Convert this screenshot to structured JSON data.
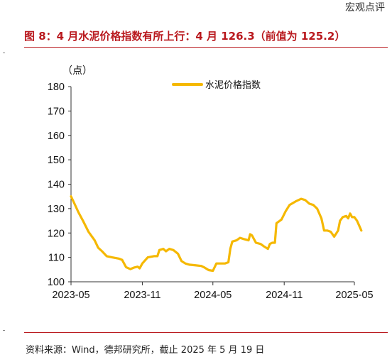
{
  "header": {
    "tag": "宏观点评",
    "title": "图 8：4 月水泥价格指数有所上行：4 月 126.3（前值为 125.2）"
  },
  "footer": {
    "source": "资料来源：Wind，德邦研究所，截止 2025 年 5 月 19 日"
  },
  "chart_data": {
    "type": "line",
    "unit": "（点）",
    "ylim": [
      100,
      180
    ],
    "yticks": [
      "100",
      "110",
      "120",
      "130",
      "140",
      "150",
      "160",
      "170",
      "180"
    ],
    "xticks": [
      "2023-05",
      "2023-11",
      "2024-05",
      "2024-11",
      "2025-05"
    ],
    "grid": false,
    "legend_position": "top-center",
    "series": [
      {
        "name": "水泥价格指数",
        "color": "#f5b800",
        "points": [
          [
            "2023-05-01",
            135.0
          ],
          [
            "2023-05-10",
            132.0
          ],
          [
            "2023-05-20",
            128.5
          ],
          [
            "2023-06-01",
            125.0
          ],
          [
            "2023-06-15",
            120.5
          ],
          [
            "2023-07-01",
            117.0
          ],
          [
            "2023-07-10",
            114.0
          ],
          [
            "2023-07-20",
            112.5
          ],
          [
            "2023-08-01",
            110.5
          ],
          [
            "2023-08-15",
            110.0
          ],
          [
            "2023-09-01",
            109.5
          ],
          [
            "2023-09-10",
            109.0
          ],
          [
            "2023-09-20",
            106.0
          ],
          [
            "2023-10-01",
            105.2
          ],
          [
            "2023-10-10",
            105.8
          ],
          [
            "2023-10-20",
            106.2
          ],
          [
            "2023-10-25",
            105.5
          ],
          [
            "2023-11-01",
            107.5
          ],
          [
            "2023-11-15",
            110.0
          ],
          [
            "2023-12-01",
            110.5
          ],
          [
            "2023-12-10",
            110.5
          ],
          [
            "2023-12-15",
            113.0
          ],
          [
            "2023-12-25",
            113.5
          ],
          [
            "2024-01-01",
            112.5
          ],
          [
            "2024-01-10",
            113.5
          ],
          [
            "2024-01-20",
            113.0
          ],
          [
            "2024-02-01",
            111.5
          ],
          [
            "2024-02-10",
            108.5
          ],
          [
            "2024-02-20",
            107.5
          ],
          [
            "2024-03-01",
            107.0
          ],
          [
            "2024-03-15",
            106.8
          ],
          [
            "2024-04-01",
            106.5
          ],
          [
            "2024-04-10",
            105.8
          ],
          [
            "2024-04-20",
            104.8
          ],
          [
            "2024-05-01",
            104.5
          ],
          [
            "2024-05-10",
            107.5
          ],
          [
            "2024-05-20",
            107.5
          ],
          [
            "2024-06-01",
            107.5
          ],
          [
            "2024-06-10",
            108.0
          ],
          [
            "2024-06-15",
            113.5
          ],
          [
            "2024-06-20",
            116.5
          ],
          [
            "2024-07-01",
            117.0
          ],
          [
            "2024-07-10",
            118.0
          ],
          [
            "2024-07-20",
            117.5
          ],
          [
            "2024-08-01",
            117.0
          ],
          [
            "2024-08-05",
            119.5
          ],
          [
            "2024-08-10",
            119.0
          ],
          [
            "2024-08-20",
            116.0
          ],
          [
            "2024-09-01",
            115.5
          ],
          [
            "2024-09-10",
            114.5
          ],
          [
            "2024-09-20",
            113.5
          ],
          [
            "2024-09-25",
            115.5
          ],
          [
            "2024-10-01",
            116.0
          ],
          [
            "2024-10-08",
            116.0
          ],
          [
            "2024-10-12",
            124.0
          ],
          [
            "2024-10-25",
            125.5
          ],
          [
            "2024-11-05",
            129.0
          ],
          [
            "2024-11-15",
            131.5
          ],
          [
            "2024-12-01",
            133.0
          ],
          [
            "2024-12-15",
            134.0
          ],
          [
            "2024-12-25",
            133.5
          ],
          [
            "2025-01-05",
            132.0
          ],
          [
            "2025-01-15",
            131.5
          ],
          [
            "2025-01-25",
            130.0
          ],
          [
            "2025-02-05",
            126.0
          ],
          [
            "2025-02-12",
            121.0
          ],
          [
            "2025-02-20",
            121.0
          ],
          [
            "2025-03-01",
            120.5
          ],
          [
            "2025-03-10",
            118.5
          ],
          [
            "2025-03-20",
            121.0
          ],
          [
            "2025-03-25",
            125.0
          ],
          [
            "2025-04-01",
            126.5
          ],
          [
            "2025-04-10",
            127.0
          ],
          [
            "2025-04-15",
            126.0
          ],
          [
            "2025-04-20",
            128.0
          ],
          [
            "2025-04-25",
            126.5
          ],
          [
            "2025-05-01",
            126.5
          ],
          [
            "2025-05-08",
            125.0
          ],
          [
            "2025-05-15",
            122.5
          ],
          [
            "2025-05-19",
            121.0
          ]
        ]
      }
    ]
  }
}
